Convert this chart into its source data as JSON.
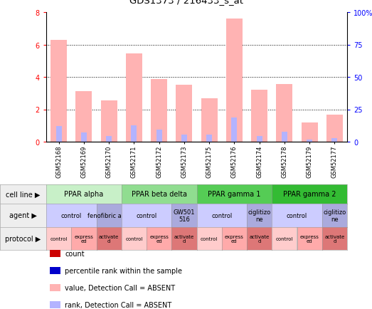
{
  "title": "GDS1373 / 216433_s_at",
  "samples": [
    "GSM52168",
    "GSM52169",
    "GSM52170",
    "GSM52171",
    "GSM52172",
    "GSM52173",
    "GSM52175",
    "GSM52176",
    "GSM52174",
    "GSM52178",
    "GSM52179",
    "GSM52177"
  ],
  "bar_values": [
    6.3,
    3.1,
    2.55,
    5.45,
    3.85,
    3.5,
    2.7,
    7.6,
    3.2,
    3.55,
    1.2,
    1.65
  ],
  "rank_values": [
    0.95,
    0.55,
    0.35,
    1.0,
    0.75,
    0.45,
    0.45,
    1.5,
    0.35,
    0.6,
    0.15,
    0.2
  ],
  "bar_color": "#ffb3b3",
  "rank_color": "#b3b3ff",
  "ylim_left": [
    0,
    8
  ],
  "ylim_right": [
    0,
    100
  ],
  "yticks_left": [
    0,
    2,
    4,
    6,
    8
  ],
  "yticks_right": [
    0,
    25,
    50,
    75,
    100
  ],
  "ytick_labels_right": [
    "0",
    "25",
    "50",
    "75",
    "100%"
  ],
  "cell_lines": [
    {
      "label": "PPAR alpha",
      "start": 0,
      "end": 3,
      "color": "#c8f0c8"
    },
    {
      "label": "PPAR beta delta",
      "start": 3,
      "end": 6,
      "color": "#90dd90"
    },
    {
      "label": "PPAR gamma 1",
      "start": 6,
      "end": 9,
      "color": "#55cc55"
    },
    {
      "label": "PPAR gamma 2",
      "start": 9,
      "end": 12,
      "color": "#33bb33"
    }
  ],
  "agents": [
    {
      "label": "control",
      "start": 0,
      "end": 2,
      "color": "#ccccff"
    },
    {
      "label": "fenofibric acid",
      "start": 2,
      "end": 3,
      "color": "#aaaadd"
    },
    {
      "label": "control",
      "start": 3,
      "end": 5,
      "color": "#ccccff"
    },
    {
      "label": "GW501\n516",
      "start": 5,
      "end": 6,
      "color": "#aaaadd"
    },
    {
      "label": "control",
      "start": 6,
      "end": 8,
      "color": "#ccccff"
    },
    {
      "label": "ciglitizo\nne",
      "start": 8,
      "end": 9,
      "color": "#aaaadd"
    },
    {
      "label": "control",
      "start": 9,
      "end": 11,
      "color": "#ccccff"
    },
    {
      "label": "ciglitizo\nne",
      "start": 11,
      "end": 12,
      "color": "#aaaadd"
    }
  ],
  "protocols": [
    {
      "label": "control",
      "start": 0,
      "end": 1,
      "color": "#ffcccc"
    },
    {
      "label": "express\ned",
      "start": 1,
      "end": 2,
      "color": "#ffaaaa"
    },
    {
      "label": "activate\nd",
      "start": 2,
      "end": 3,
      "color": "#dd7777"
    },
    {
      "label": "control",
      "start": 3,
      "end": 4,
      "color": "#ffcccc"
    },
    {
      "label": "express\ned",
      "start": 4,
      "end": 5,
      "color": "#ffaaaa"
    },
    {
      "label": "activate\nd",
      "start": 5,
      "end": 6,
      "color": "#dd7777"
    },
    {
      "label": "control",
      "start": 6,
      "end": 7,
      "color": "#ffcccc"
    },
    {
      "label": "express\ned",
      "start": 7,
      "end": 8,
      "color": "#ffaaaa"
    },
    {
      "label": "activate\nd",
      "start": 8,
      "end": 9,
      "color": "#dd7777"
    },
    {
      "label": "control",
      "start": 9,
      "end": 10,
      "color": "#ffcccc"
    },
    {
      "label": "express\ned",
      "start": 10,
      "end": 11,
      "color": "#ffaaaa"
    },
    {
      "label": "activate\nd",
      "start": 11,
      "end": 12,
      "color": "#dd7777"
    }
  ],
  "legend_items": [
    {
      "label": "count",
      "color": "#cc0000"
    },
    {
      "label": "percentile rank within the sample",
      "color": "#0000cc"
    },
    {
      "label": "value, Detection Call = ABSENT",
      "color": "#ffb3b3"
    },
    {
      "label": "rank, Detection Call = ABSENT",
      "color": "#b3b3ff"
    }
  ],
  "sample_header_color": "#cccccc",
  "label_bg_color": "#ffffff",
  "grid_color": "#000000"
}
